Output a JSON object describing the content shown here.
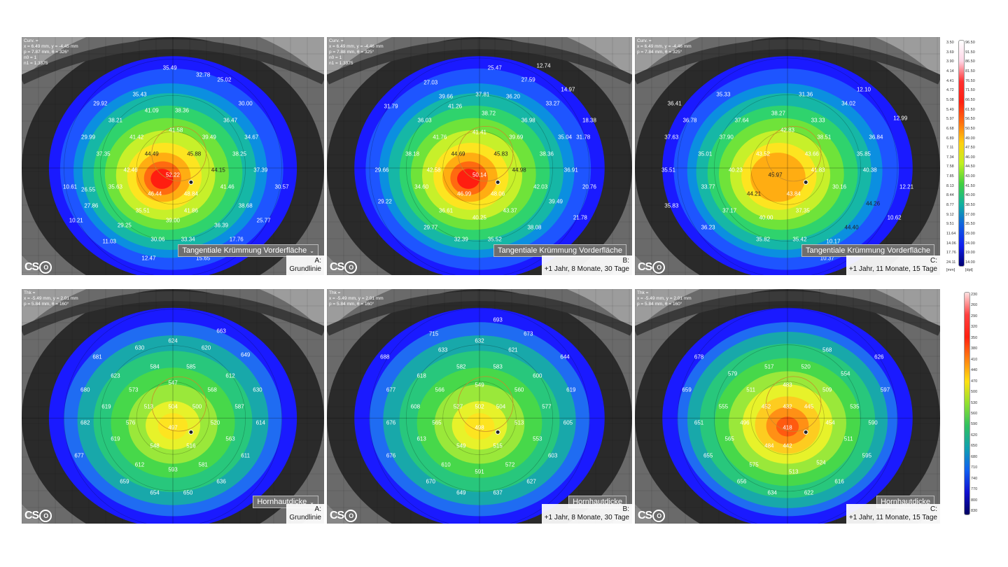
{
  "top_row": {
    "map_type_label": "Tangentiale Krümmung Vorderfläche",
    "panels": [
      {
        "info": [
          "Curv. =",
          "x = 6.49 mm, y = -4.45 mm",
          "p = 7.87 mm, θ = 326°",
          "n0 = 1",
          "n1 = 1.3375"
        ],
        "visit_letter": "A:",
        "visit_label": "Grundlinie",
        "has_dropdown": true,
        "values": [
          {
            "v": "35.49"
          },
          {
            "v": "32.78"
          },
          {
            "v": "25.02"
          },
          {
            "v": "35.43"
          },
          {
            "v": "29.92"
          },
          {
            "v": "30.00"
          },
          {
            "v": "41.09"
          },
          {
            "v": "38.36"
          },
          {
            "v": "38.21"
          },
          {
            "v": "36.47"
          },
          {
            "v": "41.58"
          },
          {
            "v": "41.42"
          },
          {
            "v": "29.99"
          },
          {
            "v": "39.49"
          },
          {
            "v": "34.67"
          },
          {
            "v": "37.35"
          },
          {
            "v": "44.49"
          },
          {
            "v": "45.88"
          },
          {
            "v": "38.25"
          },
          {
            "v": "42.46"
          },
          {
            "v": "52.22"
          },
          {
            "v": "44.15"
          },
          {
            "v": "37.39"
          },
          {
            "v": "26.55"
          },
          {
            "v": "35.63"
          },
          {
            "v": "46.44"
          },
          {
            "v": "48.84"
          },
          {
            "v": "41.46"
          },
          {
            "v": "30.57"
          },
          {
            "v": "10.61"
          },
          {
            "v": "27.86"
          },
          {
            "v": "35.51"
          },
          {
            "v": "41.86"
          },
          {
            "v": "38.68"
          },
          {
            "v": "10.21"
          },
          {
            "v": "29.25"
          },
          {
            "v": "39.00"
          },
          {
            "v": "36.39"
          },
          {
            "v": "25.77"
          },
          {
            "v": "30.06"
          },
          {
            "v": "33.34"
          },
          {
            "v": "17.76"
          },
          {
            "v": "11.03"
          },
          {
            "v": "12.47"
          },
          {
            "v": "15.65"
          }
        ]
      },
      {
        "info": [
          "Curv. =",
          "x = 6.49 mm, y = -4.46 mm",
          "p = 7.88 mm, θ = 325°",
          "n0 = 1",
          "n1 = 1.3375"
        ],
        "visit_letter": "B:",
        "visit_label": "+1 Jahr, 8 Monate, 30 Tage",
        "has_dropdown": false,
        "values": [
          {
            "v": "25.47"
          },
          {
            "v": "12.74"
          },
          {
            "v": "27.03"
          },
          {
            "v": "27.59"
          },
          {
            "v": "14.97"
          },
          {
            "v": "37.81"
          },
          {
            "v": "39.66"
          },
          {
            "v": "36.20"
          },
          {
            "v": "31.79"
          },
          {
            "v": "33.27"
          },
          {
            "v": "41.26"
          },
          {
            "v": "38.72"
          },
          {
            "v": "36.03"
          },
          {
            "v": "36.98"
          },
          {
            "v": "18.38"
          },
          {
            "v": "41.76"
          },
          {
            "v": "41.41"
          },
          {
            "v": "31.78"
          },
          {
            "v": "39.69"
          },
          {
            "v": "35.04"
          },
          {
            "v": "38.18"
          },
          {
            "v": "44.69"
          },
          {
            "v": "45.83"
          },
          {
            "v": "38.36"
          },
          {
            "v": "42.58"
          },
          {
            "v": "50.14"
          },
          {
            "v": "44.98"
          },
          {
            "v": "29.66"
          },
          {
            "v": "36.91"
          },
          {
            "v": "34.60"
          },
          {
            "v": "46.99"
          },
          {
            "v": "48.06"
          },
          {
            "v": "42.03"
          },
          {
            "v": "20.76"
          },
          {
            "v": "29.22"
          },
          {
            "v": "39.49"
          },
          {
            "v": "36.61"
          },
          {
            "v": "43.37"
          },
          {
            "v": "21.78"
          },
          {
            "v": "40.25"
          },
          {
            "v": "38.08"
          },
          {
            "v": "29.77"
          },
          {
            "v": "32.39"
          },
          {
            "v": "35.52"
          }
        ]
      },
      {
        "info": [
          "Curv. =",
          "x = 6.49 mm, y = -4.46 mm",
          "p = 7.84 mm, θ = 325°"
        ],
        "visit_letter": "C:",
        "visit_label": "+1 Jahr, 11 Monate, 15 Tage",
        "has_dropdown": false,
        "values": [
          {
            "v": "35.33"
          },
          {
            "v": "31.36"
          },
          {
            "v": "12.10"
          },
          {
            "v": "36.41"
          },
          {
            "v": "34.02"
          },
          {
            "v": "36.78"
          },
          {
            "v": "37.64"
          },
          {
            "v": "38.27"
          },
          {
            "v": "33.33"
          },
          {
            "v": "37.63"
          },
          {
            "v": "42.83"
          },
          {
            "v": "12.99"
          },
          {
            "v": "37.90"
          },
          {
            "v": "38.51"
          },
          {
            "v": "36.84"
          },
          {
            "v": "35.01"
          },
          {
            "v": "43.52"
          },
          {
            "v": "43.66"
          },
          {
            "v": "35.85"
          },
          {
            "v": "35.51"
          },
          {
            "v": "40.23"
          },
          {
            "v": "45.97"
          },
          {
            "v": "41.83"
          },
          {
            "v": "40.38"
          },
          {
            "v": "33.77"
          },
          {
            "v": "44.21"
          },
          {
            "v": "43.84"
          },
          {
            "v": "30.16"
          },
          {
            "v": "12.21"
          },
          {
            "v": "35.83"
          },
          {
            "v": "37.17"
          },
          {
            "v": "37.35"
          },
          {
            "v": "44.26"
          },
          {
            "v": "40.00"
          },
          {
            "v": "10.62"
          },
          {
            "v": "36.23"
          },
          {
            "v": "44.40"
          },
          {
            "v": "35.82"
          },
          {
            "v": "35.42"
          },
          {
            "v": "10.17"
          },
          {
            "v": "10.37"
          }
        ]
      }
    ],
    "scale": {
      "mm_values": [
        "3.50",
        "3.69",
        "3.90",
        "4.14",
        "4.41",
        "4.72",
        "5.08",
        "5.49",
        "5.97",
        "6.68",
        "6.89",
        "7.11",
        "7.34",
        "7.58",
        "7.85",
        "8.13",
        "8.44",
        "8.77",
        "9.12",
        "9.51",
        "11.64",
        "14.06",
        "17.76",
        "24.11"
      ],
      "dpt_values": [
        "96.50",
        "91.50",
        "86.50",
        "81.50",
        "76.50",
        "71.50",
        "66.50",
        "61.50",
        "56.50",
        "50.50",
        "49.00",
        "47.50",
        "46.00",
        "44.50",
        "43.00",
        "41.50",
        "40.00",
        "38.50",
        "37.00",
        "35.50",
        "29.00",
        "24.00",
        "19.00",
        "14.00"
      ],
      "unit_left": "[mm]",
      "unit_right": "[dpt]"
    }
  },
  "bottom_row": {
    "map_type_label": "Hornhautdicke",
    "panels": [
      {
        "info": [
          "Thk =",
          "x = -5.49 mm, y = 2.01 mm",
          "p = 5.84 mm, θ = 160°"
        ],
        "visit_letter": "A:",
        "visit_label": "Grundlinie",
        "has_dropdown": true,
        "values": [
          {
            "v": "663"
          },
          {
            "v": "624"
          },
          {
            "v": "630"
          },
          {
            "v": "620"
          },
          {
            "v": "681"
          },
          {
            "v": "649"
          },
          {
            "v": "584"
          },
          {
            "v": "585"
          },
          {
            "v": "623"
          },
          {
            "v": "612"
          },
          {
            "v": "547"
          },
          {
            "v": "680"
          },
          {
            "v": "573"
          },
          {
            "v": "568"
          },
          {
            "v": "630"
          },
          {
            "v": "619"
          },
          {
            "v": "513"
          },
          {
            "v": "504"
          },
          {
            "v": "500"
          },
          {
            "v": "587"
          },
          {
            "v": "682"
          },
          {
            "v": "576"
          },
          {
            "v": "497"
          },
          {
            "v": "520"
          },
          {
            "v": "614"
          },
          {
            "v": "619"
          },
          {
            "v": "548"
          },
          {
            "v": "516"
          },
          {
            "v": "563"
          },
          {
            "v": "677"
          },
          {
            "v": "611"
          },
          {
            "v": "612"
          },
          {
            "v": "581"
          },
          {
            "v": "593"
          },
          {
            "v": "659"
          },
          {
            "v": "636"
          },
          {
            "v": "654"
          },
          {
            "v": "650"
          }
        ]
      },
      {
        "info": [
          "Thk =",
          "x = -5.49 mm, y = 2.01 mm",
          "p = 5.84 mm, θ = 160°"
        ],
        "visit_letter": "B:",
        "visit_label": "+1 Jahr, 8 Monate, 30 Tage",
        "has_dropdown": false,
        "values": [
          {
            "v": "693"
          },
          {
            "v": "715"
          },
          {
            "v": "673"
          },
          {
            "v": "632"
          },
          {
            "v": "633"
          },
          {
            "v": "621"
          },
          {
            "v": "688"
          },
          {
            "v": "644"
          },
          {
            "v": "582"
          },
          {
            "v": "583"
          },
          {
            "v": "618"
          },
          {
            "v": "600"
          },
          {
            "v": "549"
          },
          {
            "v": "677"
          },
          {
            "v": "566"
          },
          {
            "v": "560"
          },
          {
            "v": "619"
          },
          {
            "v": "608"
          },
          {
            "v": "527"
          },
          {
            "v": "502"
          },
          {
            "v": "504"
          },
          {
            "v": "577"
          },
          {
            "v": "676"
          },
          {
            "v": "565"
          },
          {
            "v": "498"
          },
          {
            "v": "513"
          },
          {
            "v": "605"
          },
          {
            "v": "613"
          },
          {
            "v": "549"
          },
          {
            "v": "515"
          },
          {
            "v": "553"
          },
          {
            "v": "676"
          },
          {
            "v": "603"
          },
          {
            "v": "610"
          },
          {
            "v": "572"
          },
          {
            "v": "591"
          },
          {
            "v": "670"
          },
          {
            "v": "627"
          },
          {
            "v": "649"
          },
          {
            "v": "637"
          }
        ]
      },
      {
        "info": [
          "Thk =",
          "x = -5.49 mm, y = 2.01 mm",
          "p = 5.84 mm, θ = 160°"
        ],
        "visit_letter": "C:",
        "visit_label": "+1 Jahr, 11 Monate, 15 Tage",
        "has_dropdown": false,
        "values": [
          {
            "v": "568"
          },
          {
            "v": "678"
          },
          {
            "v": "626"
          },
          {
            "v": "579"
          },
          {
            "v": "517"
          },
          {
            "v": "520"
          },
          {
            "v": "554"
          },
          {
            "v": "483"
          },
          {
            "v": "659"
          },
          {
            "v": "511"
          },
          {
            "v": "509"
          },
          {
            "v": "597"
          },
          {
            "v": "555"
          },
          {
            "v": "452"
          },
          {
            "v": "432"
          },
          {
            "v": "445"
          },
          {
            "v": "535"
          },
          {
            "v": "651"
          },
          {
            "v": "496"
          },
          {
            "v": "418"
          },
          {
            "v": "454"
          },
          {
            "v": "590"
          },
          {
            "v": "565"
          },
          {
            "v": "484"
          },
          {
            "v": "442"
          },
          {
            "v": "511"
          },
          {
            "v": "655"
          },
          {
            "v": "595"
          },
          {
            "v": "524"
          },
          {
            "v": "575"
          },
          {
            "v": "513"
          },
          {
            "v": "656"
          },
          {
            "v": "616"
          },
          {
            "v": "634"
          },
          {
            "v": "622"
          }
        ]
      }
    ],
    "scale": {
      "values": [
        "230",
        "260",
        "290",
        "320",
        "350",
        "380",
        "410",
        "440",
        "470",
        "500",
        "530",
        "560",
        "590",
        "620",
        "650",
        "680",
        "710",
        "740",
        "770",
        "800",
        "830"
      ]
    }
  },
  "brand": {
    "logo_text": "CS",
    "logo_mark": "O"
  }
}
